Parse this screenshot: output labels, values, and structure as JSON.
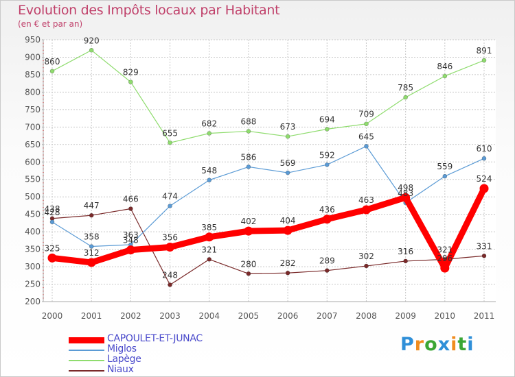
{
  "title": "Evolution des Impôts locaux par Habitant",
  "subtitle": "(en € et par an)",
  "logo": {
    "text": "Proxiti",
    "letters": [
      "P",
      "r",
      "o",
      "x",
      "i",
      "t",
      "i"
    ],
    "colors": [
      "#2f8fd8",
      "#f08c1e",
      "#3aa635",
      "#2f8fd8",
      "#f08c1e",
      "#3aa635",
      "#2f8fd8"
    ]
  },
  "chart_data": {
    "type": "line",
    "title": "Evolution des Impôts locaux par Habitant",
    "subtitle": "(en € et par an)",
    "xlabel": "",
    "ylabel": "",
    "x": [
      "2000",
      "2001",
      "2002",
      "2003",
      "2004",
      "2005",
      "2006",
      "2007",
      "2008",
      "2009",
      "2010",
      "2011"
    ],
    "ylim": [
      200,
      950
    ],
    "yticks": [
      "200",
      "250",
      "300",
      "350",
      "400",
      "450",
      "500",
      "550",
      "600",
      "650",
      "700",
      "750",
      "800",
      "850",
      "900",
      "950"
    ],
    "grid": true,
    "legend_position": "bottom-left",
    "series": [
      {
        "name": "CAPOULET-ET-JUNAC",
        "color": "#ff0000",
        "values": [
          325,
          312,
          348,
          356,
          385,
          402,
          404,
          436,
          463,
          498,
          296,
          524
        ],
        "labels": [
          "325",
          "312",
          "348",
          "356",
          "385",
          "402",
          "404",
          "436",
          "463",
          "498",
          "296",
          "524"
        ]
      },
      {
        "name": "Miglos",
        "color": "#5b9bd5",
        "values": [
          428,
          358,
          363,
          474,
          548,
          586,
          569,
          592,
          645,
          483,
          559,
          610
        ],
        "labels": [
          "428",
          "358",
          "363",
          "474",
          "548",
          "586",
          "569",
          "592",
          "645",
          "483",
          "559",
          "610"
        ]
      },
      {
        "name": "Lapège",
        "color": "#8fdc6e",
        "values": [
          860,
          920,
          829,
          655,
          682,
          688,
          673,
          694,
          709,
          785,
          846,
          891
        ],
        "labels": [
          "860",
          "920",
          "829",
          "655",
          "682",
          "688",
          "673",
          "694",
          "709",
          "785",
          "846",
          "891"
        ]
      },
      {
        "name": "Niaux",
        "color": "#7a2a2a",
        "values": [
          438,
          447,
          466,
          248,
          321,
          280,
          282,
          289,
          302,
          316,
          321,
          331
        ],
        "labels": [
          "438",
          "447",
          "466",
          "248",
          "321",
          "280",
          "282",
          "289",
          "302",
          "316",
          "321",
          "331"
        ]
      }
    ]
  }
}
